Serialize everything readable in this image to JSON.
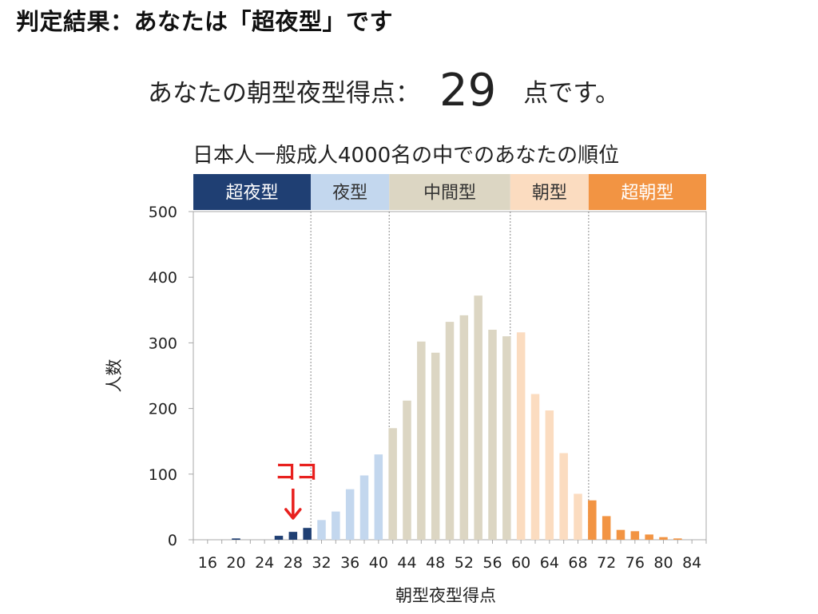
{
  "header": {
    "result_title": "判定結果：あなたは「超夜型」です"
  },
  "score": {
    "prefix": "あなたの朝型夜型得点：",
    "value": "29",
    "suffix": "点です。"
  },
  "marker": {
    "label": "ココ",
    "x_value": 28
  },
  "colors": {
    "super_night": "#1f3f73",
    "night": "#c3d7ee",
    "middle": "#dcd6c3",
    "morning": "#fbdcc0",
    "super_morning": "#f29443",
    "marker": "#e8201e"
  },
  "chart_data": {
    "type": "bar",
    "title": "日本人一般成人4000名の中でのあなたの順位",
    "xlabel": "朝型夜型得点",
    "ylabel": "人数",
    "ylim": [
      0,
      500
    ],
    "yticks": [
      0,
      100,
      200,
      300,
      400,
      500
    ],
    "xlim": [
      14,
      86
    ],
    "xticks": [
      16,
      20,
      24,
      28,
      32,
      36,
      40,
      44,
      48,
      52,
      56,
      60,
      64,
      68,
      72,
      76,
      80,
      84
    ],
    "grid": false,
    "category_bands": [
      {
        "label": "超夜型",
        "from": 14,
        "to": 30.5,
        "color": "#1f3f73",
        "text_color": "#ffffff"
      },
      {
        "label": "夜型",
        "from": 30.5,
        "to": 41.5,
        "color": "#c3d7ee",
        "text_color": "#333333"
      },
      {
        "label": "中間型",
        "from": 41.5,
        "to": 58.5,
        "color": "#dcd6c3",
        "text_color": "#333333"
      },
      {
        "label": "朝型",
        "from": 58.5,
        "to": 69.5,
        "color": "#fbdcc0",
        "text_color": "#333333"
      },
      {
        "label": "超朝型",
        "from": 69.5,
        "to": 86,
        "color": "#f29443",
        "text_color": "#ffffff"
      }
    ],
    "band_dividers": [
      30.5,
      41.5,
      58.5,
      69.5
    ],
    "series": [
      {
        "x": [
          16,
          18,
          20,
          22,
          24,
          26,
          28,
          30,
          32,
          34,
          36,
          38,
          40,
          42,
          44,
          46,
          48,
          50,
          52,
          54,
          56,
          58,
          60,
          62,
          64,
          66,
          68,
          70,
          72,
          74,
          76,
          78,
          80,
          82,
          84
        ],
        "values": [
          0,
          0,
          2,
          0,
          0,
          6,
          12,
          18,
          30,
          43,
          77,
          98,
          130,
          170,
          212,
          302,
          285,
          332,
          342,
          372,
          320,
          310,
          316,
          222,
          197,
          132,
          70,
          60,
          36,
          15,
          13,
          8,
          4,
          2,
          0
        ]
      }
    ]
  }
}
